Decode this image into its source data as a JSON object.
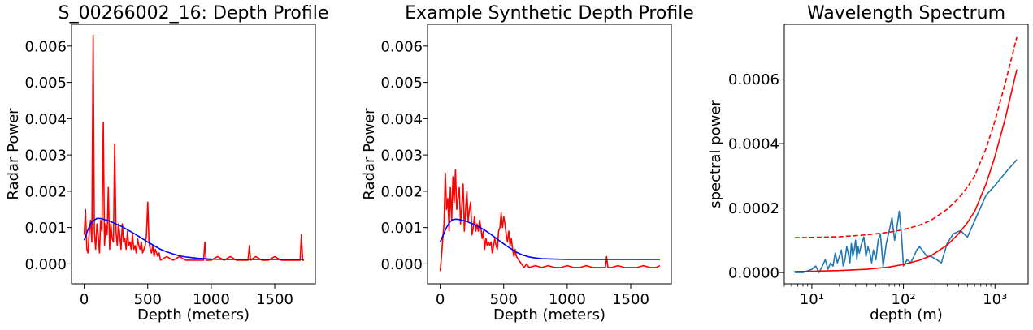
{
  "chart_data": [
    {
      "type": "line",
      "title": "S_00266002_16: Depth Profile",
      "xlabel": "Depth (meters)",
      "ylabel": "Radar Power",
      "xlim": [
        -100,
        1820
      ],
      "ylim": [
        -0.00055,
        0.0066
      ],
      "xticks": [
        0,
        500,
        1000,
        1500
      ],
      "xtick_labels": [
        "0",
        "500",
        "1000",
        "1500"
      ],
      "yticks": [
        0,
        0.001,
        0.002,
        0.003,
        0.004,
        0.005,
        0.006
      ],
      "ytick_labels": [
        "0.000",
        "0.001",
        "0.002",
        "0.003",
        "0.004",
        "0.005",
        "0.006"
      ],
      "series": [
        {
          "color": "#ff0000",
          "x": [
            0,
            10,
            20,
            30,
            40,
            50,
            60,
            70,
            80,
            90,
            100,
            110,
            120,
            130,
            140,
            150,
            160,
            170,
            180,
            190,
            200,
            210,
            220,
            230,
            240,
            250,
            260,
            270,
            280,
            290,
            300,
            310,
            320,
            330,
            340,
            350,
            360,
            370,
            380,
            390,
            400,
            410,
            420,
            430,
            440,
            450,
            460,
            470,
            480,
            490,
            500,
            510,
            520,
            530,
            540,
            550,
            560,
            570,
            580,
            590,
            600,
            650,
            700,
            750,
            800,
            850,
            900,
            940,
            950,
            960,
            1000,
            1050,
            1100,
            1150,
            1200,
            1250,
            1290,
            1300,
            1310,
            1350,
            1400,
            1450,
            1500,
            1550,
            1600,
            1650,
            1700,
            1710,
            1720,
            1730
          ],
          "y": [
            0.0008,
            0.0015,
            0.0004,
            0.0003,
            0.0009,
            0.0012,
            0.0006,
            0.0063,
            0.0009,
            0.0004,
            0.0011,
            0.0008,
            0.0003,
            0.0012,
            0.0009,
            0.0039,
            0.0005,
            0.0011,
            0.0008,
            0.0021,
            0.0004,
            0.0011,
            0.0007,
            0.0006,
            0.0033,
            0.0009,
            0.0005,
            0.0011,
            0.0008,
            0.0004,
            0.0011,
            0.0006,
            0.0007,
            0.0004,
            0.0009,
            0.0005,
            0.0006,
            0.0004,
            0.0008,
            0.0004,
            0.0005,
            0.0003,
            0.0007,
            0.0005,
            0.0004,
            0.0006,
            0.0003,
            0.0004,
            0.0005,
            0.0008,
            0.0017,
            0.0006,
            0.0004,
            0.0003,
            0.0005,
            0.0002,
            0.0004,
            0.0003,
            0.0002,
            0.0003,
            0.0001,
            0.0002,
            0.0001,
            0.0002,
            0.0001,
            0.0001,
            0.0001,
            0.0001,
            0.0006,
            0.0001,
            0.0001,
            0.0002,
            0.0001,
            0.0002,
            0.0001,
            0.0001,
            0.0001,
            0.0005,
            0.0001,
            0.0002,
            0.0001,
            0.0001,
            0.0002,
            0.0001,
            0.0001,
            0.0001,
            0.0001,
            0.0008,
            0.0001,
            0.0001
          ]
        },
        {
          "color": "#0000ff",
          "x": [
            0,
            25,
            50,
            75,
            100,
            125,
            150,
            200,
            250,
            300,
            350,
            400,
            450,
            500,
            550,
            600,
            650,
            700,
            750,
            800,
            900,
            1000,
            1100,
            1200,
            1300,
            1400,
            1500,
            1600,
            1700,
            1730
          ],
          "y": [
            0.00065,
            0.0009,
            0.0011,
            0.0012,
            0.00125,
            0.00125,
            0.00123,
            0.00118,
            0.0011,
            0.00102,
            0.00092,
            0.00082,
            0.00071,
            0.0006,
            0.0005,
            0.0004,
            0.00033,
            0.00027,
            0.00022,
            0.00019,
            0.00015,
            0.00013,
            0.00012,
            0.00012,
            0.00012,
            0.00012,
            0.00012,
            0.00012,
            0.00012,
            0.00012
          ]
        }
      ]
    },
    {
      "type": "line",
      "title": "Example Synthetic Depth Profile",
      "xlabel": "Depth (meters)",
      "ylabel": "Radar Power",
      "xlim": [
        -100,
        1820
      ],
      "ylim": [
        -0.00055,
        0.0066
      ],
      "xticks": [
        0,
        500,
        1000,
        1500
      ],
      "xtick_labels": [
        "0",
        "500",
        "1000",
        "1500"
      ],
      "yticks": [
        0,
        0.001,
        0.002,
        0.003,
        0.004,
        0.005,
        0.006
      ],
      "ytick_labels": [
        "0.000",
        "0.001",
        "0.002",
        "0.003",
        "0.004",
        "0.005",
        "0.006"
      ],
      "series": [
        {
          "color": "#ff0000",
          "x": [
            0,
            10,
            20,
            30,
            40,
            50,
            60,
            70,
            80,
            90,
            100,
            110,
            120,
            130,
            140,
            150,
            160,
            170,
            180,
            190,
            200,
            210,
            220,
            230,
            240,
            250,
            260,
            270,
            280,
            290,
            300,
            310,
            320,
            330,
            340,
            350,
            360,
            370,
            380,
            390,
            400,
            410,
            420,
            430,
            440,
            450,
            460,
            470,
            480,
            490,
            500,
            510,
            520,
            530,
            540,
            550,
            560,
            570,
            580,
            590,
            600,
            620,
            640,
            660,
            680,
            700,
            750,
            800,
            850,
            900,
            950,
            1000,
            1050,
            1100,
            1150,
            1200,
            1250,
            1300,
            1310,
            1320,
            1350,
            1400,
            1450,
            1500,
            1550,
            1600,
            1650,
            1700,
            1730
          ],
          "y": [
            -0.0002,
            0.0002,
            0.0007,
            0.0011,
            0.0025,
            0.0015,
            0.0018,
            0.0009,
            0.0021,
            0.0012,
            0.0024,
            0.0017,
            0.0026,
            0.0015,
            0.0018,
            0.0021,
            0.0011,
            0.0016,
            0.0022,
            0.0009,
            0.0015,
            0.002,
            0.0012,
            0.0015,
            0.0017,
            0.0008,
            0.001,
            0.0013,
            0.0009,
            0.0011,
            0.0009,
            0.0012,
            0.001,
            0.0007,
            0.0009,
            0.0004,
            0.0007,
            0.0005,
            0.0006,
            0.0005,
            0.0006,
            0.0003,
            0.0005,
            0.0007,
            0.0005,
            0.0004,
            0.0009,
            0.001,
            0.0014,
            0.001,
            0.0013,
            0.0011,
            0.0008,
            0.0006,
            0.0009,
            0.0005,
            0.0007,
            0.0004,
            0.0002,
            0.0004,
            0.0002,
            0.0001,
            0.0,
            -0.0001,
            0.0,
            -0.0001,
            -5e-05,
            -0.0001,
            -5e-05,
            -0.0001,
            -0.0001,
            -5e-05,
            -0.0001,
            -0.0001,
            -5e-05,
            -0.0001,
            -0.0001,
            -0.0001,
            0.0002,
            -0.0001,
            -0.0001,
            -5e-05,
            -0.0001,
            -0.0001,
            -0.0001,
            -5e-05,
            -0.0001,
            -0.0001,
            -5e-05
          ]
        },
        {
          "color": "#0000ff",
          "x": [
            0,
            25,
            50,
            75,
            100,
            125,
            150,
            200,
            250,
            300,
            350,
            400,
            450,
            500,
            550,
            600,
            650,
            700,
            750,
            800,
            900,
            1000,
            1100,
            1200,
            1300,
            1400,
            1500,
            1600,
            1700,
            1730
          ],
          "y": [
            0.0006,
            0.0008,
            0.001,
            0.00115,
            0.00122,
            0.00123,
            0.00122,
            0.00118,
            0.00111,
            0.00103,
            0.00093,
            0.00081,
            0.00068,
            0.00055,
            0.00043,
            0.00032,
            0.00024,
            0.00019,
            0.00016,
            0.00014,
            0.00013,
            0.00012,
            0.00012,
            0.00012,
            0.00012,
            0.00012,
            0.00012,
            0.00012,
            0.00012,
            0.00012
          ]
        }
      ]
    },
    {
      "type": "line",
      "title": "Wavelength Spectrum",
      "xlabel": "depth (m)",
      "ylabel": "spectral power",
      "xscale": "log",
      "xlim": [
        5,
        2300
      ],
      "ylim": [
        -3.5e-05,
        0.00077
      ],
      "xticks": [
        10,
        100,
        1000
      ],
      "xtick_labels": [
        "10¹",
        "10²",
        "10³"
      ],
      "yticks": [
        0,
        0.0002,
        0.0004,
        0.0006
      ],
      "ytick_labels": [
        "0.0000",
        "0.0002",
        "0.0004",
        "0.0006"
      ],
      "series": [
        {
          "color": "#1f77b4",
          "x": [
            6.5,
            8,
            10,
            11,
            12,
            13,
            14,
            15,
            16,
            17,
            18,
            19,
            20,
            21,
            22,
            23,
            24,
            25,
            26,
            27,
            28,
            29,
            30,
            31,
            32,
            33,
            35,
            37,
            39,
            41,
            43,
            45,
            47,
            50,
            53,
            56,
            60,
            65,
            70,
            75,
            80,
            85,
            90,
            95,
            100,
            110,
            120,
            130,
            140,
            150,
            160,
            170,
            180,
            200,
            230,
            260,
            300,
            350,
            420,
            500,
            620,
            800,
            1000,
            1300,
            1730
          ],
          "y": [
            0.0,
            0.0,
            1e-05,
            2e-05,
            0.0,
            2e-05,
            4e-05,
            1e-05,
            3e-05,
            2e-05,
            6e-05,
            3e-05,
            5e-05,
            7e-05,
            2e-05,
            4e-05,
            8e-05,
            6e-05,
            3e-05,
            9e-05,
            5e-05,
            7e-05,
            0.0001,
            4e-05,
            8e-05,
            6e-05,
            9e-05,
            0.00011,
            5e-05,
            8e-05,
            6e-05,
            3e-05,
            7e-05,
            4e-05,
            0.0001,
            0.00012,
            2e-05,
            9e-05,
            0.00013,
            0.00017,
            0.0001,
            0.00014,
            0.00019,
            0.00012,
            2e-05,
            4e-05,
            3e-05,
            5e-05,
            7e-05,
            8e-05,
            7e-05,
            6e-05,
            5e-05,
            5e-05,
            4e-05,
            3e-05,
            9e-05,
            0.00012,
            0.00013,
            0.00011,
            0.00017,
            0.00024,
            0.00027,
            0.00031,
            0.00035
          ]
        },
        {
          "color": "#ff0000",
          "x": [
            6.5,
            10,
            20,
            40,
            70,
            100,
            150,
            200,
            300,
            400,
            500,
            600,
            800,
            1000,
            1300,
            1730
          ],
          "y": [
            3e-06,
            4e-06,
            6e-06,
            1e-05,
            1.7e-05,
            2.5e-05,
            3.8e-05,
            5.2e-05,
            8.5e-05,
            0.00012,
            0.000155,
            0.00019,
            0.000275,
            0.00036,
            0.00048,
            0.00063
          ]
        },
        {
          "color": "#ff0000",
          "dashed": true,
          "x": [
            6.5,
            10,
            20,
            40,
            70,
            100,
            150,
            200,
            300,
            400,
            500,
            600,
            800,
            1000,
            1300,
            1730
          ],
          "y": [
            0.000108,
            0.000109,
            0.000111,
            0.000117,
            0.000125,
            0.000133,
            0.000147,
            0.000162,
            0.000196,
            0.00023,
            0.000265,
            0.0003,
            0.000385,
            0.00047,
            0.00059,
            0.00073
          ]
        }
      ]
    }
  ]
}
